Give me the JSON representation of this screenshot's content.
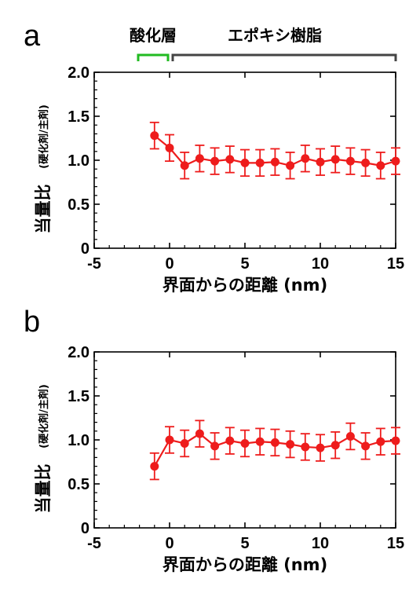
{
  "colors": {
    "series": "#ee1c1c",
    "oxide_bracket": "#22bb22",
    "epoxy_bracket": "#444444",
    "axis": "#000000"
  },
  "panels": {
    "a": {
      "label": "a"
    },
    "b": {
      "label": "b"
    }
  },
  "regions": {
    "oxide": "酸化層",
    "epoxy": "エポキシ樹脂"
  },
  "chart_data": [
    {
      "type": "scatter",
      "panel": "a",
      "xlabel": "界面からの距離 (nm)",
      "ylabel": "当量比",
      "ylabel_sub": "(硬化剤/主剤)",
      "xlim": [
        -5,
        15
      ],
      "ylim": [
        0,
        2.0
      ],
      "xticks": [
        -5,
        0,
        5,
        10,
        15
      ],
      "yticks": [
        "0",
        "0.5",
        "1.0",
        "1.5",
        "2.0"
      ],
      "grid": false,
      "line_connected": true,
      "x": [
        -1,
        0,
        1,
        2,
        3,
        4,
        5,
        6,
        7,
        8,
        9,
        10,
        11,
        12,
        13,
        14,
        15
      ],
      "y": [
        1.28,
        1.14,
        0.94,
        1.02,
        0.99,
        1.01,
        0.97,
        0.97,
        0.98,
        0.94,
        1.02,
        0.98,
        1.01,
        0.99,
        0.97,
        0.94,
        0.99
      ],
      "yerr": [
        0.15,
        0.15,
        0.15,
        0.15,
        0.15,
        0.15,
        0.15,
        0.15,
        0.15,
        0.15,
        0.15,
        0.15,
        0.15,
        0.15,
        0.15,
        0.15,
        0.15
      ]
    },
    {
      "type": "scatter",
      "panel": "b",
      "xlabel": "界面からの距離 (nm)",
      "ylabel": "当量比",
      "ylabel_sub": "(硬化剤/主剤)",
      "xlim": [
        -5,
        15
      ],
      "ylim": [
        0,
        2.0
      ],
      "xticks": [
        -5,
        0,
        5,
        10,
        15
      ],
      "yticks": [
        "0",
        "0.5",
        "1.0",
        "1.5",
        "2.0"
      ],
      "grid": false,
      "line_connected": true,
      "x": [
        -1,
        0,
        1,
        2,
        3,
        4,
        5,
        6,
        7,
        8,
        9,
        10,
        11,
        12,
        13,
        14,
        15
      ],
      "y": [
        0.7,
        1.0,
        0.96,
        1.07,
        0.93,
        0.99,
        0.96,
        0.98,
        0.97,
        0.95,
        0.92,
        0.91,
        0.94,
        1.04,
        0.93,
        0.98,
        0.99
      ],
      "yerr": [
        0.15,
        0.15,
        0.15,
        0.15,
        0.15,
        0.15,
        0.15,
        0.15,
        0.15,
        0.15,
        0.15,
        0.15,
        0.15,
        0.15,
        0.15,
        0.15,
        0.15
      ]
    }
  ]
}
